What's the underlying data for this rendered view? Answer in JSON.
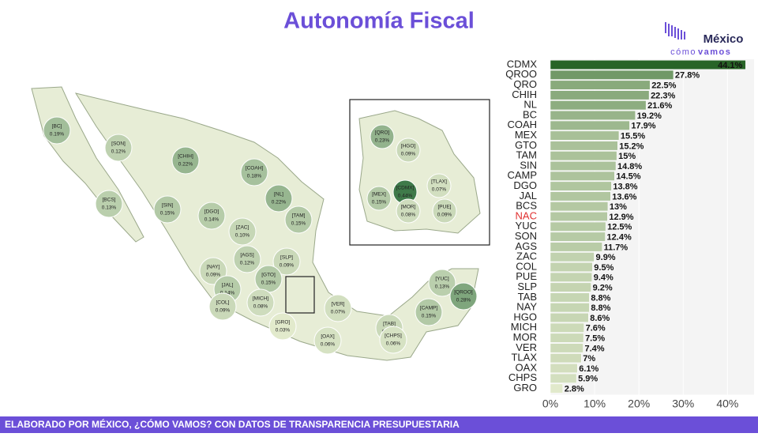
{
  "header": {
    "title": "Autonomía Fiscal",
    "logo": {
      "line1": "México",
      "line2": "cómo",
      "line3": "vamos"
    }
  },
  "footer": {
    "text": "ELABORADO POR MÉXICO, ¿CÓMO VAMOS? CON DATOS DE TRANSPARENCIA PRESUPUESTARIA"
  },
  "chart_data": [
    {
      "type": "map",
      "color_low": "#eef2d6",
      "color_high": "#3f7a4a",
      "regions": [
        {
          "code": "[BC]",
          "value": 0.19,
          "value_label": "0.19%"
        },
        {
          "code": "[SON]",
          "value": 0.12,
          "value_label": "0.12%"
        },
        {
          "code": "[CHIH]",
          "value": 0.22,
          "value_label": "0.22%"
        },
        {
          "code": "[COAH]",
          "value": 0.18,
          "value_label": "0.18%"
        },
        {
          "code": "[NL]",
          "value": 0.22,
          "value_label": "0.22%"
        },
        {
          "code": "[TAM]",
          "value": 0.15,
          "value_label": "0.15%"
        },
        {
          "code": "[BCS]",
          "value": 0.13,
          "value_label": "0.13%"
        },
        {
          "code": "[SIN]",
          "value": 0.15,
          "value_label": "0.15%"
        },
        {
          "code": "[DGO]",
          "value": 0.14,
          "value_label": "0.14%"
        },
        {
          "code": "[ZAC]",
          "value": 0.1,
          "value_label": "0.10%"
        },
        {
          "code": "[AGS]",
          "value": 0.12,
          "value_label": "0.12%"
        },
        {
          "code": "[SLP]",
          "value": 0.09,
          "value_label": "0.09%"
        },
        {
          "code": "[NAY]",
          "value": 0.09,
          "value_label": "0.09%"
        },
        {
          "code": "[JAL]",
          "value": 0.14,
          "value_label": "0.14%"
        },
        {
          "code": "[GTO]",
          "value": 0.15,
          "value_label": "0.15%"
        },
        {
          "code": "[MICH]",
          "value": 0.08,
          "value_label": "0.08%"
        },
        {
          "code": "[COL]",
          "value": 0.09,
          "value_label": "0.09%"
        },
        {
          "code": "[GRO]",
          "value": 0.03,
          "value_label": "0.03%"
        },
        {
          "code": "[OAX]",
          "value": 0.06,
          "value_label": "0.06%"
        },
        {
          "code": "[VER]",
          "value": 0.07,
          "value_label": "0.07%"
        },
        {
          "code": "[TAB]",
          "value": 0.09,
          "value_label": "0.09%"
        },
        {
          "code": "[CHPS]",
          "value": 0.06,
          "value_label": "0.06%"
        },
        {
          "code": "[CAMP]",
          "value": 0.15,
          "value_label": "0.15%"
        },
        {
          "code": "[YUC]",
          "value": 0.13,
          "value_label": "0.13%"
        },
        {
          "code": "[QROO]",
          "value": 0.28,
          "value_label": "0.28%"
        }
      ],
      "inset": [
        {
          "code": "[HGO]",
          "value": 0.09,
          "value_label": "0.09%"
        },
        {
          "code": "[QRO]",
          "value": 0.23,
          "value_label": "0.23%"
        },
        {
          "code": "[CDMX]",
          "value": 0.44,
          "value_label": "0.44%"
        },
        {
          "code": "[TLAX]",
          "value": 0.07,
          "value_label": "0.07%"
        },
        {
          "code": "[MEX]",
          "value": 0.15,
          "value_label": "0.15%"
        },
        {
          "code": "[MOR]",
          "value": 0.08,
          "value_label": "0.08%"
        },
        {
          "code": "[PUE]",
          "value": 0.09,
          "value_label": "0.09%"
        }
      ]
    },
    {
      "type": "bar",
      "orientation": "horizontal",
      "color_low": "#eef2d6",
      "color_high": "#1f5e1f",
      "highlight_index": 15,
      "highlight_color": "#e03030",
      "categories": [
        "CDMX",
        "QROO",
        "QRO",
        "CHIH",
        "NL",
        "BC",
        "COAH",
        "MEX",
        "GTO",
        "TAM",
        "SIN",
        "CAMP",
        "DGO",
        "JAL",
        "BCS",
        "NAC",
        "YUC",
        "SON",
        "AGS",
        "ZAC",
        "COL",
        "PUE",
        "SLP",
        "TAB",
        "NAY",
        "HGO",
        "MICH",
        "MOR",
        "VER",
        "TLAX",
        "OAX",
        "CHPS",
        "GRO"
      ],
      "values": [
        44.1,
        27.8,
        22.5,
        22.3,
        21.6,
        19.2,
        17.9,
        15.5,
        15.2,
        15,
        14.8,
        14.5,
        13.8,
        13.6,
        13,
        12.9,
        12.5,
        12.4,
        11.7,
        9.9,
        9.5,
        9.4,
        9.2,
        8.8,
        8.8,
        8.6,
        7.6,
        7.5,
        7.4,
        7,
        6.1,
        5.9,
        2.8
      ],
      "value_labels": [
        "44.1%",
        "27.8%",
        "22.5%",
        "22.3%",
        "21.6%",
        "19.2%",
        "17.9%",
        "15.5%",
        "15.2%",
        "15%",
        "14.8%",
        "14.5%",
        "13.8%",
        "13.6%",
        "13%",
        "12.9%",
        "12.5%",
        "12.4%",
        "11.7%",
        "9.9%",
        "9.5%",
        "9.4%",
        "9.2%",
        "8.8%",
        "8.8%",
        "8.6%",
        "7.6%",
        "7.5%",
        "7.4%",
        "7%",
        "6.1%",
        "5.9%",
        "2.8%"
      ],
      "xlim": [
        0,
        46
      ],
      "xticks": [
        {
          "value": 0,
          "label": "0%"
        },
        {
          "value": 10,
          "label": "10%"
        },
        {
          "value": 20,
          "label": "20%"
        },
        {
          "value": 30,
          "label": "30%"
        },
        {
          "value": 40,
          "label": "40%"
        }
      ]
    }
  ]
}
